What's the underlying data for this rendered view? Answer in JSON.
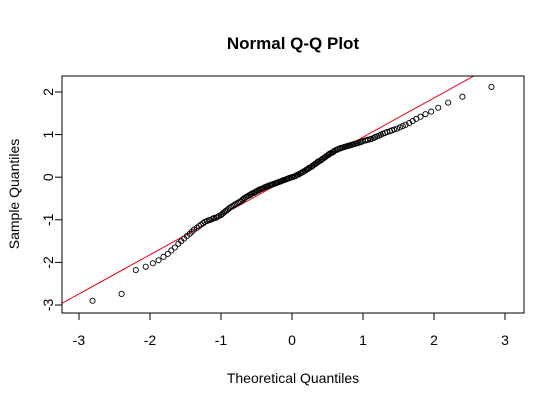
{
  "chart_data": {
    "type": "scatter",
    "title": "Normal Q-Q Plot",
    "xlabel": "Theoretical Quantiles",
    "ylabel": "Sample Quantiles",
    "xlim": [
      -3,
      3
    ],
    "ylim": [
      -3,
      2.3
    ],
    "xticks": [
      "-3",
      "-2",
      "-1",
      "0",
      "1",
      "2",
      "3"
    ],
    "yticks": [
      "-3",
      "-2",
      "-1",
      "0",
      "1",
      "2"
    ],
    "grid": false,
    "reference_line": {
      "intercept": 0.02,
      "slope": 0.92,
      "color": "#e8001c"
    },
    "point_color": "#000000",
    "x": [
      -2.81,
      -2.4,
      -2.2,
      -2.06,
      -1.96,
      -1.88,
      -1.81,
      -1.75,
      -1.7,
      -1.65,
      -1.6,
      -1.56,
      -1.52,
      -1.48,
      -1.44,
      -1.41,
      -1.38,
      -1.34,
      -1.31,
      -1.28,
      -1.25,
      -1.23,
      -1.2,
      -1.17,
      -1.15,
      -1.12,
      -1.1,
      -1.07,
      -1.05,
      -1.03,
      -1.0,
      -0.98,
      -0.96,
      -0.94,
      -0.92,
      -0.9,
      -0.88,
      -0.86,
      -0.84,
      -0.82,
      -0.8,
      -0.78,
      -0.76,
      -0.74,
      -0.72,
      -0.7,
      -0.68,
      -0.67,
      -0.65,
      -0.63,
      -0.61,
      -0.59,
      -0.58,
      -0.56,
      -0.54,
      -0.52,
      -0.51,
      -0.49,
      -0.47,
      -0.46,
      -0.44,
      -0.42,
      -0.41,
      -0.39,
      -0.37,
      -0.36,
      -0.34,
      -0.33,
      -0.31,
      -0.29,
      -0.28,
      -0.26,
      -0.24,
      -0.23,
      -0.21,
      -0.2,
      -0.18,
      -0.16,
      -0.15,
      -0.13,
      -0.12,
      -0.1,
      -0.08,
      -0.07,
      -0.05,
      -0.04,
      -0.02,
      0.0,
      0.02,
      0.04,
      0.05,
      0.07,
      0.08,
      0.1,
      0.12,
      0.13,
      0.15,
      0.16,
      0.18,
      0.2,
      0.21,
      0.23,
      0.24,
      0.26,
      0.28,
      0.29,
      0.31,
      0.33,
      0.34,
      0.36,
      0.37,
      0.39,
      0.41,
      0.42,
      0.44,
      0.46,
      0.47,
      0.49,
      0.51,
      0.52,
      0.54,
      0.56,
      0.58,
      0.59,
      0.61,
      0.63,
      0.65,
      0.67,
      0.68,
      0.7,
      0.72,
      0.74,
      0.76,
      0.78,
      0.8,
      0.82,
      0.84,
      0.86,
      0.88,
      0.9,
      0.92,
      0.94,
      0.96,
      0.98,
      1.0,
      1.03,
      1.05,
      1.07,
      1.1,
      1.12,
      1.15,
      1.17,
      1.2,
      1.23,
      1.25,
      1.28,
      1.31,
      1.34,
      1.38,
      1.41,
      1.44,
      1.48,
      1.52,
      1.56,
      1.6,
      1.65,
      1.7,
      1.75,
      1.81,
      1.88,
      1.96,
      2.06,
      2.2,
      2.4,
      2.81
    ],
    "y": [
      -2.9,
      -2.74,
      -2.18,
      -2.1,
      -2.02,
      -1.95,
      -1.87,
      -1.8,
      -1.72,
      -1.65,
      -1.56,
      -1.5,
      -1.44,
      -1.38,
      -1.33,
      -1.28,
      -1.23,
      -1.19,
      -1.15,
      -1.11,
      -1.08,
      -1.05,
      -1.03,
      -1.01,
      -1.0,
      -0.98,
      -0.96,
      -0.95,
      -0.93,
      -0.91,
      -0.89,
      -0.86,
      -0.83,
      -0.8,
      -0.78,
      -0.75,
      -0.72,
      -0.7,
      -0.68,
      -0.66,
      -0.64,
      -0.62,
      -0.6,
      -0.58,
      -0.56,
      -0.53,
      -0.51,
      -0.49,
      -0.47,
      -0.45,
      -0.43,
      -0.42,
      -0.4,
      -0.38,
      -0.37,
      -0.35,
      -0.34,
      -0.32,
      -0.31,
      -0.29,
      -0.28,
      -0.27,
      -0.26,
      -0.24,
      -0.23,
      -0.22,
      -0.21,
      -0.2,
      -0.19,
      -0.18,
      -0.17,
      -0.16,
      -0.15,
      -0.14,
      -0.13,
      -0.12,
      -0.11,
      -0.1,
      -0.09,
      -0.08,
      -0.07,
      -0.06,
      -0.05,
      -0.04,
      -0.03,
      -0.02,
      -0.01,
      0.0,
      0.01,
      0.02,
      0.03,
      0.05,
      0.06,
      0.07,
      0.09,
      0.1,
      0.12,
      0.13,
      0.15,
      0.17,
      0.18,
      0.2,
      0.22,
      0.23,
      0.25,
      0.27,
      0.29,
      0.31,
      0.33,
      0.35,
      0.37,
      0.38,
      0.4,
      0.42,
      0.44,
      0.46,
      0.48,
      0.5,
      0.52,
      0.54,
      0.56,
      0.57,
      0.59,
      0.61,
      0.63,
      0.64,
      0.66,
      0.67,
      0.68,
      0.69,
      0.7,
      0.71,
      0.72,
      0.73,
      0.74,
      0.75,
      0.76,
      0.77,
      0.78,
      0.79,
      0.8,
      0.81,
      0.82,
      0.83,
      0.85,
      0.86,
      0.87,
      0.88,
      0.89,
      0.9,
      0.92,
      0.94,
      0.96,
      0.98,
      1.0,
      1.02,
      1.04,
      1.06,
      1.08,
      1.1,
      1.12,
      1.14,
      1.17,
      1.2,
      1.23,
      1.27,
      1.32,
      1.37,
      1.42,
      1.48,
      1.54,
      1.63,
      1.75,
      1.89,
      2.12
    ]
  }
}
